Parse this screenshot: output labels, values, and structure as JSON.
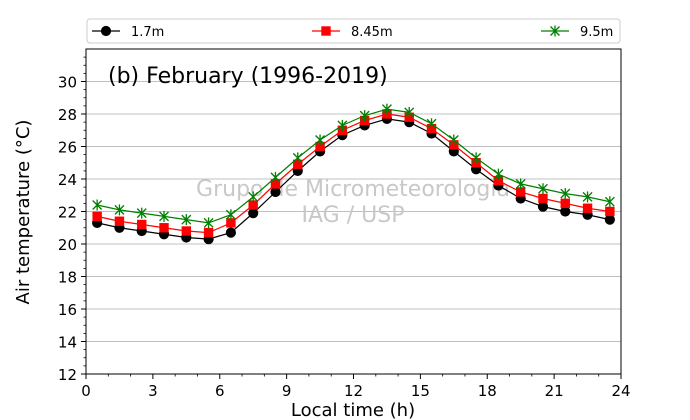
{
  "chart_data": {
    "type": "line",
    "title": "(b) February (1996-2019)",
    "xlabel": "Local time (h)",
    "ylabel": "Air temperature (°C)",
    "xlim": [
      0,
      24
    ],
    "ylim": [
      12,
      32
    ],
    "xticks": [
      0,
      3,
      6,
      9,
      12,
      15,
      18,
      21,
      24
    ],
    "yticks": [
      12,
      14,
      16,
      18,
      20,
      22,
      24,
      26,
      28,
      30
    ],
    "grid": "horizontal",
    "legend_position": "top",
    "watermark": [
      "Grupo de Micrometeorologia",
      "IAG / USP"
    ],
    "x": [
      0.5,
      1.5,
      2.5,
      3.5,
      4.5,
      5.5,
      6.5,
      7.5,
      8.5,
      9.5,
      10.5,
      11.5,
      12.5,
      13.5,
      14.5,
      15.5,
      16.5,
      17.5,
      18.5,
      19.5,
      20.5,
      21.5,
      22.5,
      23.5
    ],
    "series": [
      {
        "name": "1.7m",
        "color": "#000000",
        "marker": "circle",
        "values": [
          21.3,
          21.0,
          20.8,
          20.6,
          20.4,
          20.3,
          20.7,
          21.9,
          23.2,
          24.5,
          25.7,
          26.7,
          27.3,
          27.7,
          27.5,
          26.8,
          25.7,
          24.6,
          23.6,
          22.8,
          22.3,
          22.0,
          21.8,
          21.5
        ]
      },
      {
        "name": "8.45m",
        "color": "#ff0000",
        "marker": "square",
        "values": [
          21.7,
          21.4,
          21.2,
          21.0,
          20.8,
          20.7,
          21.3,
          22.4,
          23.7,
          24.9,
          26.0,
          27.0,
          27.6,
          28.0,
          27.8,
          27.1,
          26.1,
          25.0,
          23.9,
          23.2,
          22.8,
          22.5,
          22.2,
          22.0
        ]
      },
      {
        "name": "9.5m",
        "color": "#008000",
        "marker": "x-star",
        "values": [
          22.4,
          22.1,
          21.9,
          21.7,
          21.5,
          21.3,
          21.8,
          22.9,
          24.1,
          25.3,
          26.4,
          27.3,
          27.9,
          28.3,
          28.1,
          27.4,
          26.4,
          25.3,
          24.3,
          23.7,
          23.4,
          23.1,
          22.9,
          22.6
        ]
      }
    ]
  }
}
